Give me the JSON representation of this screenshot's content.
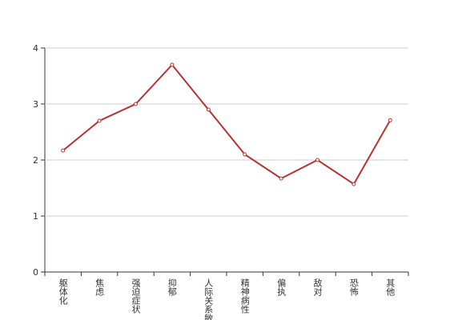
{
  "chart_data": {
    "type": "line",
    "categories": [
      "躯体化",
      "焦虑",
      "强迫症状",
      "抑郁",
      "人际关系敏感",
      "精神病性",
      "偏执",
      "敌对",
      "恐怖",
      "其他"
    ],
    "series": [
      {
        "color": "#b83232",
        "values": [
          2.17,
          2.7,
          3.0,
          3.7,
          2.9,
          2.1,
          1.67,
          2.0,
          1.57,
          2.71
        ]
      }
    ],
    "ylim": [
      0,
      4
    ],
    "yticks": [
      0,
      1,
      2,
      3,
      4
    ],
    "grid": true
  }
}
